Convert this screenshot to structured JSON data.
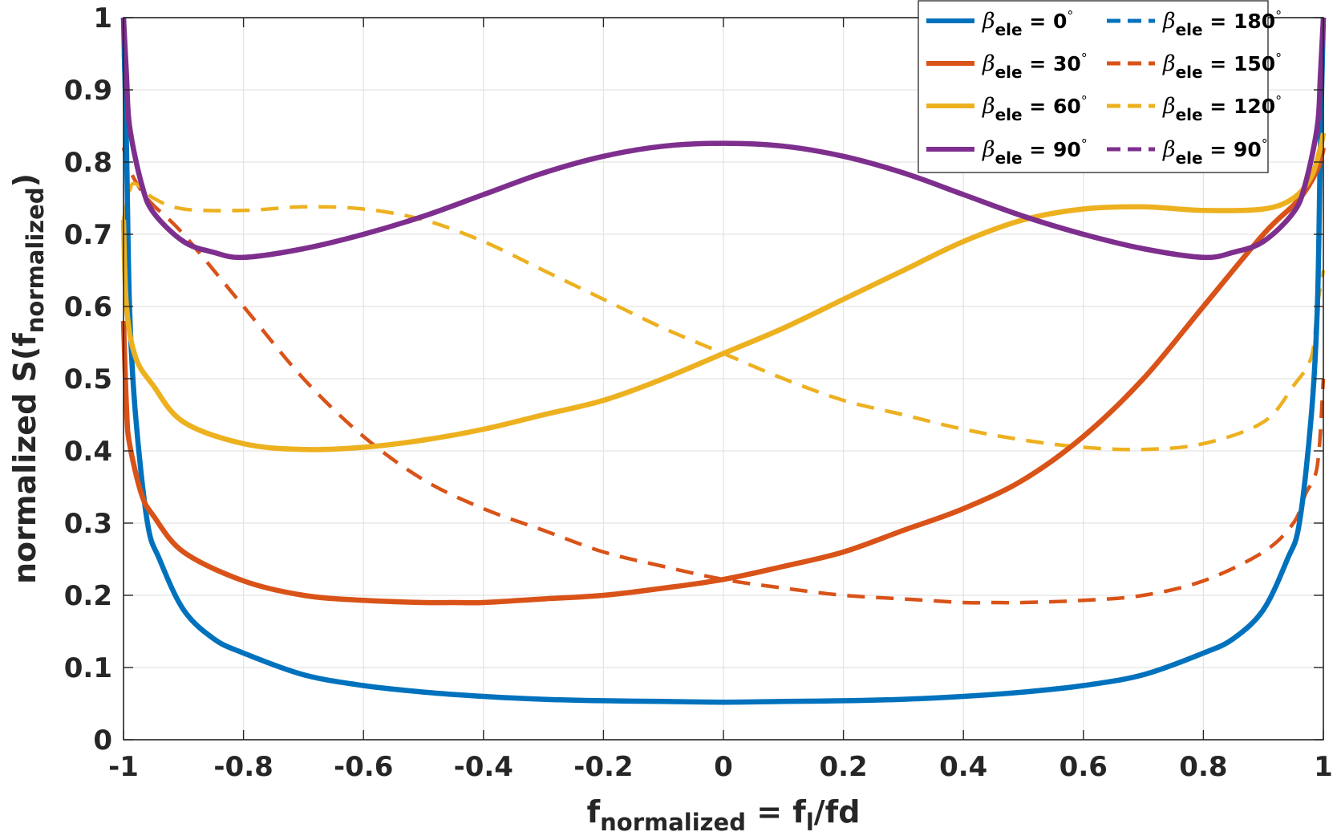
{
  "chart_data": {
    "type": "line",
    "title": "",
    "xlabel": {
      "main": "f",
      "sub": "normalized",
      "rest": " = f",
      "sub2": "l",
      "rest2": "/fd"
    },
    "ylabel": {
      "main": "normalized S(f",
      "sub": "normalized",
      "rest": ")"
    },
    "xlim": [
      -1,
      1
    ],
    "ylim": [
      0,
      1
    ],
    "grid": true,
    "x_ticks": [
      -1,
      -0.8,
      -0.6,
      -0.4,
      -0.2,
      0,
      0.2,
      0.4,
      0.6,
      0.8,
      1
    ],
    "x_tick_labels": [
      "-1",
      "-0.8",
      "-0.6",
      "-0.4",
      "-0.2",
      "0",
      "0.2",
      "0.4",
      "0.6",
      "0.8",
      "1"
    ],
    "y_ticks": [
      0,
      0.1,
      0.2,
      0.3,
      0.4,
      0.5,
      0.6,
      0.7,
      0.8,
      0.9,
      1
    ],
    "y_tick_labels": [
      "0",
      "0.1",
      "0.2",
      "0.3",
      "0.4",
      "0.5",
      "0.6",
      "0.7",
      "0.8",
      "0.9",
      "1"
    ],
    "legend_position": "top-right",
    "series": [
      {
        "name": "β_ele = 0°",
        "label_symbol": "β",
        "label_sub": "ele",
        "label_rest": " = 0",
        "deg": "°",
        "color": "#0072BD",
        "dash": "solid",
        "x": [
          -1,
          -0.995,
          -0.99,
          -0.98,
          -0.96,
          -0.94,
          -0.9,
          -0.85,
          -0.8,
          -0.7,
          -0.6,
          -0.5,
          -0.4,
          -0.3,
          -0.2,
          -0.1,
          0,
          0.1,
          0.2,
          0.3,
          0.4,
          0.5,
          0.6,
          0.7,
          0.8,
          0.85,
          0.9,
          0.94,
          0.96,
          0.98,
          0.99,
          0.995,
          1
        ],
        "y": [
          1,
          0.82,
          0.6,
          0.45,
          0.3,
          0.25,
          0.18,
          0.14,
          0.12,
          0.09,
          0.075,
          0.066,
          0.06,
          0.056,
          0.054,
          0.053,
          0.052,
          0.053,
          0.054,
          0.056,
          0.06,
          0.066,
          0.075,
          0.09,
          0.12,
          0.14,
          0.18,
          0.25,
          0.3,
          0.45,
          0.6,
          0.82,
          1
        ]
      },
      {
        "name": "β_ele = 30°",
        "label_symbol": "β",
        "label_sub": "ele",
        "label_rest": " = 30",
        "deg": "°",
        "color": "#D95319",
        "dash": "solid",
        "x": [
          -1,
          -0.995,
          -0.99,
          -0.97,
          -0.95,
          -0.9,
          -0.8,
          -0.7,
          -0.6,
          -0.5,
          -0.45,
          -0.4,
          -0.3,
          -0.2,
          -0.1,
          0,
          0.1,
          0.2,
          0.3,
          0.4,
          0.5,
          0.6,
          0.7,
          0.8,
          0.9,
          0.95,
          0.97,
          0.99,
          1
        ],
        "y": [
          0.58,
          0.46,
          0.41,
          0.34,
          0.31,
          0.26,
          0.22,
          0.2,
          0.193,
          0.19,
          0.19,
          0.19,
          0.195,
          0.2,
          0.21,
          0.222,
          0.24,
          0.26,
          0.29,
          0.32,
          0.36,
          0.42,
          0.5,
          0.6,
          0.7,
          0.74,
          0.76,
          0.79,
          0.82
        ]
      },
      {
        "name": "β_ele = 60°",
        "label_symbol": "β",
        "label_sub": "ele",
        "label_rest": " = 60",
        "deg": "°",
        "color": "#EDB120",
        "dash": "solid",
        "x": [
          -1,
          -0.995,
          -0.98,
          -0.95,
          -0.9,
          -0.8,
          -0.7,
          -0.6,
          -0.5,
          -0.4,
          -0.3,
          -0.2,
          -0.1,
          0,
          0.1,
          0.2,
          0.3,
          0.4,
          0.5,
          0.6,
          0.7,
          0.8,
          0.9,
          0.95,
          0.98,
          0.995,
          1
        ],
        "y": [
          0.72,
          0.6,
          0.53,
          0.49,
          0.44,
          0.41,
          0.402,
          0.405,
          0.415,
          0.43,
          0.45,
          0.47,
          0.5,
          0.535,
          0.57,
          0.61,
          0.65,
          0.69,
          0.72,
          0.735,
          0.738,
          0.733,
          0.735,
          0.75,
          0.78,
          0.82,
          0.84
        ]
      },
      {
        "name": "β_ele = 90°",
        "label_symbol": "β",
        "label_sub": "ele",
        "label_rest": " = 90",
        "deg": "°",
        "color": "#7E2F8E",
        "dash": "solid",
        "x": [
          -1,
          -0.995,
          -0.99,
          -0.97,
          -0.95,
          -0.9,
          -0.85,
          -0.8,
          -0.7,
          -0.6,
          -0.5,
          -0.4,
          -0.3,
          -0.2,
          -0.1,
          0,
          0.1,
          0.2,
          0.3,
          0.4,
          0.5,
          0.6,
          0.7,
          0.8,
          0.85,
          0.9,
          0.95,
          0.97,
          0.99,
          0.995,
          1
        ],
        "y": [
          1,
          0.92,
          0.85,
          0.77,
          0.73,
          0.69,
          0.675,
          0.668,
          0.68,
          0.7,
          0.725,
          0.755,
          0.785,
          0.808,
          0.822,
          0.826,
          0.822,
          0.808,
          0.785,
          0.755,
          0.725,
          0.7,
          0.68,
          0.668,
          0.675,
          0.69,
          0.73,
          0.77,
          0.85,
          0.92,
          1
        ]
      },
      {
        "name": "β_ele = 180°",
        "label_symbol": "β",
        "label_sub": "ele",
        "label_rest": " = 180",
        "deg": "°",
        "color": "#0072BD",
        "dash": "dashed",
        "x": [
          -1,
          -0.995,
          -0.99,
          -0.98,
          -0.96,
          -0.94,
          -0.9,
          -0.85,
          -0.8,
          -0.7,
          -0.6,
          -0.5,
          -0.4,
          -0.3,
          -0.2,
          -0.1,
          0,
          0.1,
          0.2,
          0.3,
          0.4,
          0.5,
          0.6,
          0.7,
          0.8,
          0.85,
          0.9,
          0.94,
          0.96,
          0.98,
          0.99,
          0.995,
          1
        ],
        "y": [
          0.95,
          0.8,
          0.6,
          0.45,
          0.3,
          0.25,
          0.18,
          0.14,
          0.12,
          0.09,
          0.075,
          0.066,
          0.06,
          0.056,
          0.054,
          0.053,
          0.052,
          0.053,
          0.054,
          0.056,
          0.06,
          0.066,
          0.075,
          0.09,
          0.12,
          0.14,
          0.18,
          0.25,
          0.3,
          0.45,
          0.6,
          0.85,
          1
        ]
      },
      {
        "name": "β_ele = 150°",
        "label_symbol": "β",
        "label_sub": "ele",
        "label_rest": " = 150",
        "deg": "°",
        "color": "#D95319",
        "dash": "dashed",
        "x": [
          -1,
          -0.99,
          -0.97,
          -0.95,
          -0.9,
          -0.8,
          -0.7,
          -0.6,
          -0.5,
          -0.4,
          -0.3,
          -0.2,
          -0.1,
          0,
          0.1,
          0.2,
          0.3,
          0.4,
          0.45,
          0.5,
          0.6,
          0.7,
          0.8,
          0.9,
          0.95,
          0.97,
          0.99,
          1
        ],
        "y": [
          0.82,
          0.79,
          0.76,
          0.74,
          0.7,
          0.6,
          0.5,
          0.42,
          0.36,
          0.32,
          0.29,
          0.26,
          0.24,
          0.222,
          0.21,
          0.2,
          0.195,
          0.19,
          0.19,
          0.19,
          0.193,
          0.2,
          0.22,
          0.26,
          0.3,
          0.34,
          0.38,
          0.5
        ]
      },
      {
        "name": "β_ele = 120°",
        "label_symbol": "β",
        "label_sub": "ele",
        "label_rest": " = 120",
        "deg": "°",
        "color": "#EDB120",
        "dash": "dashed",
        "x": [
          -1,
          -0.99,
          -0.98,
          -0.95,
          -0.9,
          -0.8,
          -0.7,
          -0.6,
          -0.5,
          -0.4,
          -0.3,
          -0.2,
          -0.1,
          0,
          0.1,
          0.2,
          0.3,
          0.4,
          0.5,
          0.6,
          0.7,
          0.8,
          0.9,
          0.95,
          0.98,
          0.99,
          1
        ],
        "y": [
          0.72,
          0.76,
          0.77,
          0.75,
          0.735,
          0.733,
          0.738,
          0.735,
          0.72,
          0.69,
          0.65,
          0.61,
          0.57,
          0.535,
          0.5,
          0.47,
          0.45,
          0.43,
          0.415,
          0.405,
          0.402,
          0.41,
          0.44,
          0.49,
          0.53,
          0.6,
          0.65
        ]
      },
      {
        "name": "β_ele = 90°",
        "label_symbol": "β",
        "label_sub": "ele",
        "label_rest": " = 90",
        "deg": "°",
        "color": "#7E2F8E",
        "dash": "dashed",
        "x": [
          -1,
          -0.995,
          -0.99,
          -0.97,
          -0.95,
          -0.9,
          -0.85,
          -0.8,
          -0.7,
          -0.6,
          -0.5,
          -0.4,
          -0.3,
          -0.2,
          -0.1,
          0,
          0.1,
          0.2,
          0.3,
          0.4,
          0.5,
          0.6,
          0.7,
          0.8,
          0.85,
          0.9,
          0.95,
          0.97,
          0.99,
          0.995,
          1
        ],
        "y": [
          1,
          0.92,
          0.85,
          0.77,
          0.73,
          0.69,
          0.675,
          0.668,
          0.68,
          0.7,
          0.725,
          0.755,
          0.785,
          0.808,
          0.822,
          0.826,
          0.822,
          0.808,
          0.785,
          0.755,
          0.725,
          0.7,
          0.68,
          0.668,
          0.675,
          0.69,
          0.73,
          0.77,
          0.85,
          0.92,
          1
        ]
      }
    ]
  }
}
